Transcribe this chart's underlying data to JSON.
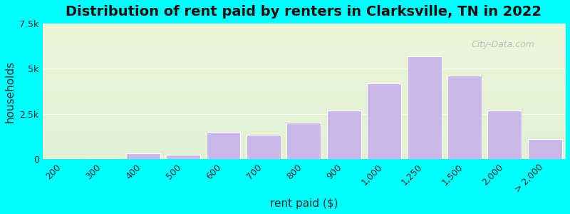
{
  "title": "Distribution of rent paid by renters in Clarksville, TN in 2022",
  "xlabel": "rent paid ($)",
  "ylabel": "households",
  "bar_labels": [
    "200",
    "300",
    "400",
    "500",
    "600",
    "700",
    "800",
    "900",
    "1,000",
    "1,250",
    "1,500",
    "2,000",
    "> 2,000"
  ],
  "bar_values": [
    30,
    50,
    300,
    250,
    1500,
    1350,
    2000,
    2700,
    4200,
    5700,
    4600,
    2700,
    1100
  ],
  "bar_color": "#c9b8e8",
  "bar_edge_color": "#ffffff",
  "ylim": [
    0,
    7500
  ],
  "yticks": [
    0,
    2500,
    5000,
    7500
  ],
  "ytick_labels": [
    "0",
    "2.5k",
    "5k",
    "7.5k"
  ],
  "background_color": "#00ffff",
  "plot_bg_top": "#e8f5e0",
  "plot_bg_bottom": "#f5f5e0",
  "title_fontsize": 14,
  "axis_label_fontsize": 11,
  "tick_fontsize": 9,
  "watermark_text": "City-Data.com"
}
